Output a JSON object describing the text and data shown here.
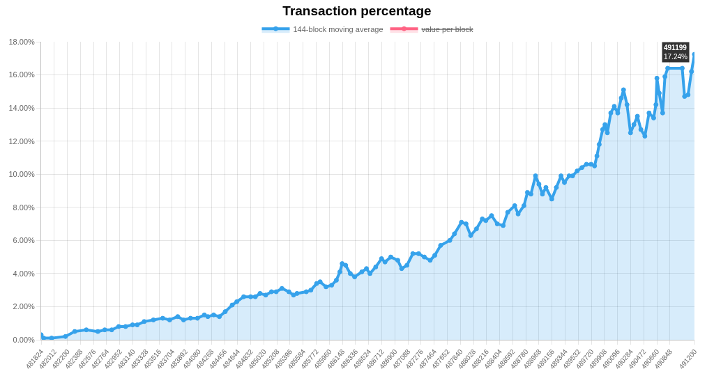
{
  "chart_data": {
    "type": "area",
    "title": "Transaction percentage",
    "x": [
      481824,
      481860,
      481974,
      482173,
      482306,
      482472,
      482638,
      482737,
      482837,
      482937,
      483036,
      483136,
      483203,
      483303,
      483435,
      483569,
      483668,
      483784,
      483868,
      483968,
      484067,
      484167,
      484217,
      484300,
      484382,
      484466,
      484566,
      484632,
      484731,
      484831,
      484898,
      484965,
      485047,
      485130,
      485197,
      485280,
      485379,
      485446,
      485496,
      485629,
      485695,
      485778,
      485828,
      485912,
      485994,
      486061,
      486111,
      486144,
      486194,
      486261,
      486323,
      486426,
      486493,
      486543,
      486626,
      486709,
      486759,
      486842,
      486942,
      486998,
      487074,
      487158,
      487241,
      487323,
      487407,
      487473,
      487557,
      487689,
      487756,
      487856,
      487922,
      487988,
      488071,
      488155,
      488205,
      488288,
      488370,
      488454,
      488520,
      488620,
      488669,
      488753,
      488803,
      488853,
      488919,
      488968,
      489018,
      489068,
      489152,
      489218,
      489285,
      489334,
      489401,
      489451,
      489517,
      489584,
      489650,
      489716,
      489766,
      489800,
      489833,
      489883,
      489916,
      489950,
      489999,
      490049,
      490099,
      490149,
      490182,
      490232,
      490282,
      490331,
      490381,
      490431,
      490488,
      490548,
      490614,
      490647,
      490661,
      490694,
      490743,
      490776,
      490816,
      491024,
      491058,
      491108,
      491157,
      491199
    ],
    "series": [
      {
        "name": "144-block moving average",
        "color": "#36a2eb",
        "values": [
          0.3,
          0.1,
          0.1,
          0.2,
          0.5,
          0.6,
          0.5,
          0.6,
          0.6,
          0.8,
          0.8,
          0.9,
          0.9,
          1.1,
          1.2,
          1.3,
          1.2,
          1.4,
          1.2,
          1.3,
          1.3,
          1.5,
          1.4,
          1.5,
          1.4,
          1.7,
          2.1,
          2.3,
          2.6,
          2.6,
          2.6,
          2.8,
          2.7,
          2.9,
          2.9,
          3.1,
          2.9,
          2.7,
          2.8,
          2.9,
          3.0,
          3.4,
          3.5,
          3.2,
          3.3,
          3.6,
          4.1,
          4.6,
          4.5,
          4.0,
          3.8,
          4.1,
          4.3,
          4.0,
          4.4,
          4.9,
          4.7,
          5.0,
          4.8,
          4.3,
          4.5,
          5.2,
          5.2,
          5.0,
          4.8,
          5.1,
          5.7,
          6.0,
          6.4,
          7.1,
          7.0,
          6.3,
          6.7,
          7.3,
          7.2,
          7.5,
          7.0,
          6.9,
          7.7,
          8.1,
          7.6,
          8.1,
          8.9,
          8.8,
          9.9,
          9.4,
          8.8,
          9.2,
          8.5,
          9.2,
          9.9,
          9.5,
          9.9,
          9.9,
          10.2,
          10.4,
          10.6,
          10.6,
          10.5,
          11.1,
          11.8,
          12.7,
          13.0,
          12.5,
          13.7,
          14.1,
          13.7,
          14.6,
          15.1,
          14.2,
          12.5,
          13.0,
          13.5,
          12.7,
          12.3,
          13.7,
          13.4,
          14.2,
          15.8,
          14.9,
          13.7,
          15.9,
          16.4,
          16.4,
          14.7,
          14.8,
          16.2,
          17.24
        ]
      },
      {
        "name": "value per block",
        "color": "#ff6384",
        "values": [
          null,
          null,
          null,
          null,
          null,
          null,
          null,
          null,
          null,
          null,
          null,
          null,
          null,
          null,
          null,
          null,
          null,
          null,
          null,
          null,
          null,
          null,
          null,
          null,
          null,
          null,
          null,
          null,
          null,
          null,
          null,
          null,
          null,
          null,
          null,
          null,
          null,
          null,
          null,
          null,
          null,
          null,
          null,
          null,
          null,
          null,
          null,
          null,
          null,
          null,
          null,
          null,
          null,
          null,
          null,
          null,
          null,
          null,
          null,
          null,
          null,
          null,
          null,
          null,
          null,
          null,
          null,
          null,
          null,
          null,
          null,
          null,
          null,
          null,
          null,
          null,
          null,
          null,
          null,
          null,
          null,
          null,
          null,
          null,
          null,
          null,
          null,
          null,
          null,
          null,
          null,
          null,
          null,
          null,
          null,
          null,
          null,
          null,
          null,
          null,
          null,
          null,
          null,
          null,
          null,
          null,
          null,
          null,
          null,
          null,
          null,
          null,
          null,
          null,
          null,
          null,
          null,
          null,
          null,
          null,
          null,
          null,
          null,
          null,
          null,
          null,
          null,
          null
        ]
      }
    ],
    "xlim": [
      481824,
      491200
    ],
    "xticks": [
      481824,
      482012,
      482200,
      482388,
      482576,
      482764,
      482952,
      483140,
      483328,
      483516,
      483704,
      483892,
      484080,
      484268,
      484456,
      484644,
      484832,
      485020,
      485208,
      485396,
      485584,
      485772,
      485960,
      486148,
      486336,
      486524,
      486712,
      486900,
      487088,
      487276,
      487464,
      487652,
      487840,
      488028,
      488216,
      488404,
      488592,
      488780,
      488968,
      489156,
      489344,
      489532,
      489720,
      489908,
      490096,
      490284,
      490472,
      490660,
      490848,
      491200
    ],
    "ylim": [
      0,
      18
    ],
    "yticks": [
      {
        "value": 0,
        "label": "0.00%"
      },
      {
        "value": 2,
        "label": "2.00%"
      },
      {
        "value": 4,
        "label": "4.00%"
      },
      {
        "value": 6,
        "label": "6.00%"
      },
      {
        "value": 8,
        "label": "8.00%"
      },
      {
        "value": 10,
        "label": "10.00%"
      },
      {
        "value": 12,
        "label": "12.00%"
      },
      {
        "value": 14,
        "label": "14.00%"
      },
      {
        "value": 16,
        "label": "16.00%"
      },
      {
        "value": 18,
        "label": "18.00%"
      }
    ],
    "annotations": [
      {
        "text": "491199\n17.24%",
        "x": 491199,
        "y": 17.24
      }
    ],
    "grid": true,
    "legend": "top",
    "marker": "circle"
  }
}
